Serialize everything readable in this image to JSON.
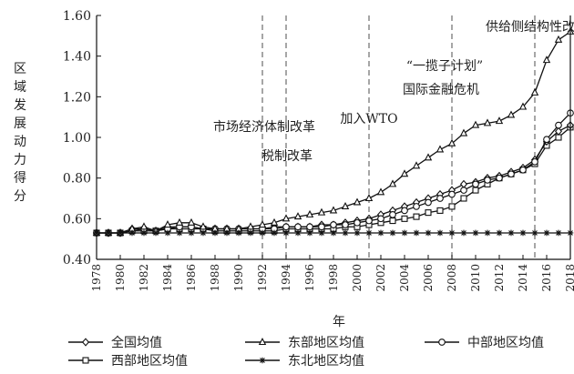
{
  "chart_data": {
    "type": "line",
    "xlabel": "年",
    "ylabel": "区域发展动力得分",
    "xlim": [
      1978,
      2018
    ],
    "ylim": [
      0.4,
      1.6
    ],
    "x_ticks": [
      1978,
      1980,
      1982,
      1984,
      1986,
      1988,
      1990,
      1992,
      1994,
      1996,
      1998,
      2000,
      2002,
      2004,
      2006,
      2008,
      2010,
      2012,
      2014,
      2016,
      2018
    ],
    "y_ticks": [
      "0.40",
      "0.60",
      "0.80",
      "1.00",
      "1.20",
      "1.40",
      "1.60"
    ],
    "grid": false,
    "legend_position": "bottom",
    "x": [
      1978,
      1979,
      1980,
      1981,
      1982,
      1983,
      1984,
      1985,
      1986,
      1987,
      1988,
      1989,
      1990,
      1991,
      1992,
      1993,
      1994,
      1995,
      1996,
      1997,
      1998,
      1999,
      2000,
      2001,
      2002,
      2003,
      2004,
      2005,
      2006,
      2007,
      2008,
      2009,
      2010,
      2011,
      2012,
      2013,
      2014,
      2015,
      2016,
      2017,
      2018
    ],
    "series": [
      {
        "name": "全国均值",
        "marker": "diamond",
        "values": [
          0.53,
          0.53,
          0.53,
          0.55,
          0.55,
          0.54,
          0.56,
          0.56,
          0.56,
          0.55,
          0.55,
          0.55,
          0.55,
          0.55,
          0.55,
          0.56,
          0.56,
          0.56,
          0.56,
          0.57,
          0.57,
          0.58,
          0.59,
          0.6,
          0.62,
          0.64,
          0.66,
          0.68,
          0.7,
          0.72,
          0.74,
          0.77,
          0.78,
          0.8,
          0.81,
          0.83,
          0.85,
          0.89,
          0.98,
          1.03,
          1.06
        ]
      },
      {
        "name": "东部地区均值",
        "marker": "triangle",
        "values": [
          0.53,
          0.53,
          0.53,
          0.55,
          0.56,
          0.54,
          0.57,
          0.58,
          0.58,
          0.56,
          0.55,
          0.55,
          0.55,
          0.56,
          0.57,
          0.58,
          0.6,
          0.61,
          0.62,
          0.63,
          0.64,
          0.66,
          0.68,
          0.7,
          0.73,
          0.77,
          0.82,
          0.86,
          0.9,
          0.94,
          0.97,
          1.02,
          1.06,
          1.07,
          1.08,
          1.11,
          1.15,
          1.22,
          1.38,
          1.48,
          1.52
        ]
      },
      {
        "name": "中部地区均值",
        "marker": "circle",
        "values": [
          0.53,
          0.53,
          0.53,
          0.54,
          0.55,
          0.54,
          0.55,
          0.56,
          0.56,
          0.55,
          0.55,
          0.55,
          0.55,
          0.55,
          0.55,
          0.55,
          0.56,
          0.56,
          0.56,
          0.56,
          0.57,
          0.57,
          0.58,
          0.59,
          0.6,
          0.62,
          0.64,
          0.66,
          0.68,
          0.7,
          0.72,
          0.74,
          0.77,
          0.79,
          0.8,
          0.82,
          0.84,
          0.88,
          0.99,
          1.06,
          1.12
        ]
      },
      {
        "name": "西部地区均值",
        "marker": "square",
        "values": [
          0.53,
          0.53,
          0.53,
          0.54,
          0.54,
          0.54,
          0.55,
          0.55,
          0.55,
          0.55,
          0.54,
          0.54,
          0.54,
          0.54,
          0.54,
          0.54,
          0.55,
          0.55,
          0.55,
          0.55,
          0.55,
          0.56,
          0.56,
          0.57,
          0.58,
          0.59,
          0.6,
          0.61,
          0.63,
          0.64,
          0.66,
          0.7,
          0.74,
          0.77,
          0.8,
          0.82,
          0.84,
          0.87,
          0.96,
          1.0,
          1.05
        ]
      },
      {
        "name": "东北地区均值",
        "marker": "asterisk",
        "values": [
          0.53,
          0.53,
          0.53,
          0.53,
          0.53,
          0.53,
          0.53,
          0.53,
          0.53,
          0.53,
          0.53,
          0.53,
          0.53,
          0.53,
          0.53,
          0.53,
          0.53,
          0.53,
          0.53,
          0.53,
          0.53,
          0.53,
          0.53,
          0.53,
          0.53,
          0.53,
          0.53,
          0.53,
          0.53,
          0.53,
          0.53,
          0.53,
          0.53,
          0.53,
          0.53,
          0.53,
          0.53,
          0.53,
          0.53,
          0.53,
          0.53
        ]
      }
    ],
    "vlines": [
      1992,
      1994,
      2001,
      2008,
      2015
    ],
    "annotations": [
      {
        "text": "市场经济体制改革",
        "x": 1992
      },
      {
        "text": "税制改革",
        "x": 1994
      },
      {
        "text": "加入WTO",
        "x": 2001
      },
      {
        "text": "“一揽子计划”",
        "x": 2008
      },
      {
        "text": "国际金融危机",
        "x": 2008
      },
      {
        "text": "供给侧结构性改革",
        "x": 2015
      }
    ]
  }
}
